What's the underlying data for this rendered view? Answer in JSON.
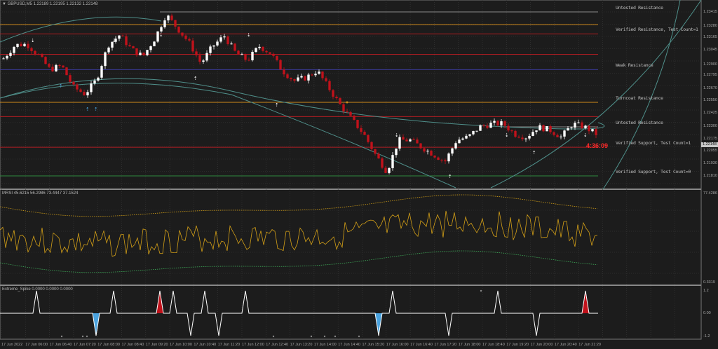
{
  "main_header": "▼ GBPUSD,M5  1.22189 1.22195 1.22132 1.22148",
  "rsi_header": "MRSI 45.6215 56.2986 73.4447 37.1524",
  "spike_header": "Extreme_Spike 0.0000 0.0000 0.0000",
  "countdown": "4:36:09",
  "current_price": "1.22148",
  "colors": {
    "background": "#1c1c1c",
    "bull_candle": "#ffffff",
    "bear_candle": "#c0121b",
    "grid": "#3a3a3a",
    "rsi_line": "#d4a017",
    "upper_band": "#d4a017",
    "lower_band": "#3fae5a",
    "spike_line": "#ffffff",
    "spike_blue": "#4aa3df",
    "spike_red": "#c0121b",
    "arc": "#4f8f8a"
  },
  "price_axis": [
    "1.23415",
    "1.23280",
    "1.23165",
    "1.23045",
    "1.22900",
    "1.22795",
    "1.22670",
    "1.22550",
    "1.22425",
    "1.22300",
    "1.22175",
    "1.22055",
    "1.21930",
    "1.21810"
  ],
  "rsi_axis": {
    "top": "77.4286",
    "bottom": "0.3319"
  },
  "spike_axis": [
    "1.2",
    "0.00",
    "-1.2"
  ],
  "levels": [
    {
      "label": "Untested Resistance",
      "price": 1.23415,
      "color": "#8a8a8a"
    },
    {
      "label": "",
      "price": 1.2329,
      "color": "#d08a1a"
    },
    {
      "label": "Verified Resistance, Test Count=1",
      "price": 1.232,
      "color": "#b01c22"
    },
    {
      "label": "",
      "price": 1.23,
      "color": "#b01c22"
    },
    {
      "label": "Weak Resistance",
      "price": 1.2285,
      "color": "#3b3b9a"
    },
    {
      "label": "Turncoat Resistance",
      "price": 1.2253,
      "color": "#d08a1a"
    },
    {
      "label": "",
      "price": 1.2239,
      "color": "#b01c22"
    },
    {
      "label": "Untested Resistance",
      "price": 1.2229,
      "color": "#8a8a8a"
    },
    {
      "label": "Verified Support, Test Count=1",
      "price": 1.2209,
      "color": "#b01c22"
    },
    {
      "label": "Verified Support, Test Count=0",
      "price": 1.2181,
      "color": "#2e8a3e"
    }
  ],
  "time_axis": [
    "17 Jun 2022",
    "17 Jun 06:00",
    "17 Jun 06:40",
    "17 Jun 07:20",
    "17 Jun 08:00",
    "17 Jun 08:40",
    "17 Jun 09:20",
    "17 Jun 10:00",
    "17 Jun 10:40",
    "17 Jun 11:20",
    "17 Jun 12:00",
    "17 Jun 12:40",
    "17 Jun 13:20",
    "17 Jun 14:00",
    "17 Jun 14:40",
    "17 Jun 15:20",
    "17 Jun 16:00",
    "17 Jun 16:40",
    "17 Jun 17:20",
    "17 Jun 18:00",
    "17 Jun 18:40",
    "17 Jun 19:20",
    "17 Jun 20:00",
    "17 Jun 20:40",
    "17 Jun 21:20"
  ],
  "chart_data": {
    "type": "candlestick",
    "symbol": "GBPUSD",
    "timeframe": "M5",
    "ylim": [
      1.2169,
      1.235
    ],
    "close_path": [
      1.2296,
      1.2309,
      1.231,
      1.2299,
      1.2285,
      1.2289,
      1.2268,
      1.2261,
      1.2275,
      1.2309,
      1.2319,
      1.2305,
      1.2298,
      1.2315,
      1.2339,
      1.2325,
      1.2311,
      1.2291,
      1.2308,
      1.2318,
      1.2301,
      1.2294,
      1.2308,
      1.2301,
      1.2284,
      1.2274,
      1.2277,
      1.2284,
      1.2267,
      1.225,
      1.2236,
      1.2222,
      1.2202,
      1.2185,
      1.2216,
      1.2216,
      1.2209,
      1.2202,
      1.2195,
      1.2216,
      1.2219,
      1.2229,
      1.2232,
      1.2232,
      1.2222,
      1.2219,
      1.2229,
      1.2226,
      1.2219,
      1.2232,
      1.2229,
      1.2222
    ],
    "arrows_down_x": [
      47,
      163,
      230,
      355,
      566,
      723,
      835
    ],
    "arrows_up_x": [
      87,
      125,
      137,
      279,
      395,
      642,
      762
    ],
    "spikes": [
      {
        "x": 52,
        "dir": 1,
        "color": "white"
      },
      {
        "x": 137,
        "dir": -1,
        "color": "blue"
      },
      {
        "x": 162,
        "dir": 1,
        "color": "white"
      },
      {
        "x": 228,
        "dir": 1,
        "color": "red"
      },
      {
        "x": 247,
        "dir": 1,
        "color": "white"
      },
      {
        "x": 272,
        "dir": -1,
        "color": "white"
      },
      {
        "x": 292,
        "dir": 1,
        "color": "white"
      },
      {
        "x": 312,
        "dir": -1,
        "color": "white"
      },
      {
        "x": 350,
        "dir": 1,
        "color": "white"
      },
      {
        "x": 540,
        "dir": -1,
        "color": "blue"
      },
      {
        "x": 560,
        "dir": 1,
        "color": "white"
      },
      {
        "x": 640,
        "dir": -1,
        "color": "white"
      },
      {
        "x": 710,
        "dir": 1,
        "color": "white"
      },
      {
        "x": 765,
        "dir": -1,
        "color": "white"
      },
      {
        "x": 835,
        "dir": 1,
        "color": "red"
      }
    ]
  }
}
